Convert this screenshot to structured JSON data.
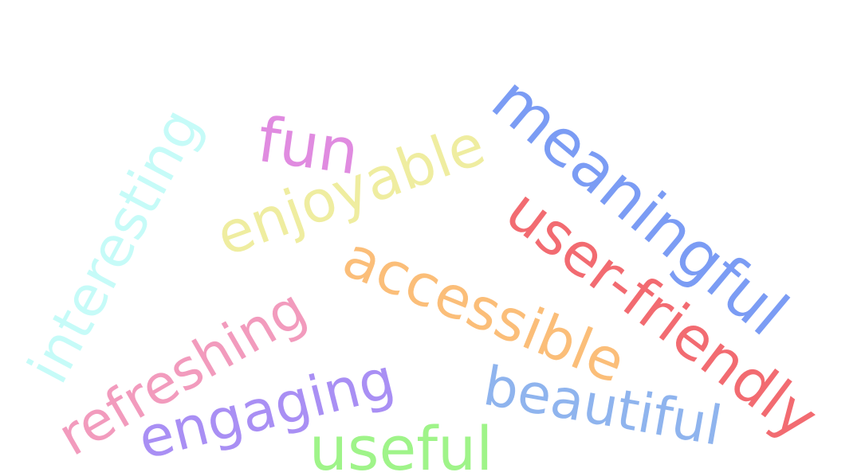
{
  "words": [
    {
      "text": "meaningful",
      "color": "#7b9cf4"
    },
    {
      "text": "fun",
      "color": "#e08be0"
    },
    {
      "text": "interesting",
      "color": "#c6fbf8"
    },
    {
      "text": "enjoyable",
      "color": "#efeda0"
    },
    {
      "text": "user-friendly",
      "color": "#f26b71"
    },
    {
      "text": "accessible",
      "color": "#fbbe79"
    },
    {
      "text": "refreshing",
      "color": "#f29bbd"
    },
    {
      "text": "engaging",
      "color": "#a98ff4"
    },
    {
      "text": "beautiful",
      "color": "#8fb4ee"
    },
    {
      "text": "useful",
      "color": "#9ff489"
    }
  ]
}
